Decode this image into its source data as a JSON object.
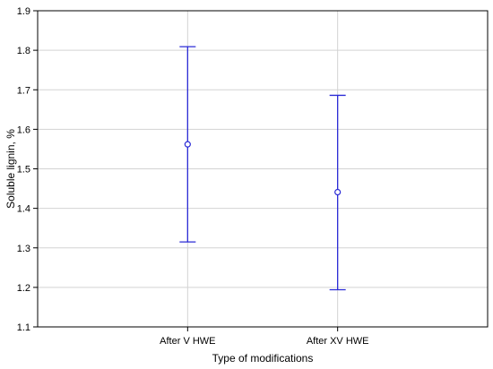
{
  "chart_data": {
    "type": "errorbar",
    "title": "",
    "xlabel": "Type of modifications",
    "ylabel": "Soluble lignin, %",
    "categories": [
      "After V HWE",
      "After XV HWE"
    ],
    "series": [
      {
        "means": [
          1.562,
          1.441
        ],
        "lower": [
          1.315,
          1.194
        ],
        "upper": [
          1.809,
          1.686
        ]
      }
    ],
    "ylim": [
      1.1,
      1.9
    ],
    "yticks": [
      "1.1",
      "1.2",
      "1.3",
      "1.4",
      "1.5",
      "1.6",
      "1.7",
      "1.8",
      "1.9"
    ],
    "grid": true,
    "colors": {
      "series": "#2b2bd6",
      "grid": "#d3d3d3",
      "axis": "#000000"
    }
  }
}
